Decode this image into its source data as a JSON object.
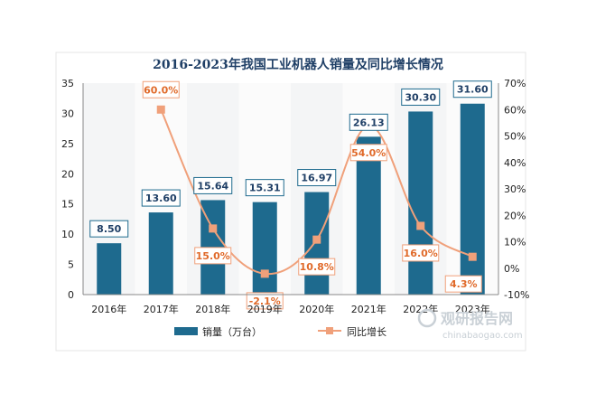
{
  "chart_data": {
    "type": "bar",
    "title": "2016-2023年我国工业机器人销量及同比增长情况",
    "categories": [
      "2016年",
      "2017年",
      "2018年",
      "2019年",
      "2020年",
      "2021年",
      "2022年",
      "2023年"
    ],
    "series": [
      {
        "name": "销量（万台）",
        "type": "bar",
        "axis": "left",
        "color": "#1e6a8e",
        "values": [
          8.5,
          13.6,
          15.64,
          15.31,
          16.97,
          26.13,
          30.3,
          31.6
        ],
        "labels": [
          "8.50",
          "13.60",
          "15.64",
          "15.31",
          "16.97",
          "26.13",
          "30.30",
          "31.60"
        ]
      },
      {
        "name": "同比增长",
        "type": "line",
        "axis": "right",
        "color": "#f0a07a",
        "values": [
          null,
          60.0,
          15.0,
          -2.1,
          10.8,
          54.0,
          16.0,
          4.3
        ],
        "labels": [
          "",
          "60.0%",
          "15.0%",
          "-2.1%",
          "10.8%",
          "54.0%",
          "16.0%",
          "4.3%"
        ]
      }
    ],
    "yleft": {
      "min": 0,
      "max": 35,
      "ticks": [
        "0",
        "5",
        "10",
        "15",
        "20",
        "25",
        "30",
        "35"
      ]
    },
    "yright": {
      "min": -10,
      "max": 70,
      "ticks": [
        "-10%",
        "0%",
        "10%",
        "20%",
        "30%",
        "40%",
        "50%",
        "60%",
        "70%"
      ]
    },
    "grid": false,
    "legend_position": "bottom"
  },
  "watermark": {
    "brand": "观研报告网",
    "url": "chinabaogao.com"
  }
}
